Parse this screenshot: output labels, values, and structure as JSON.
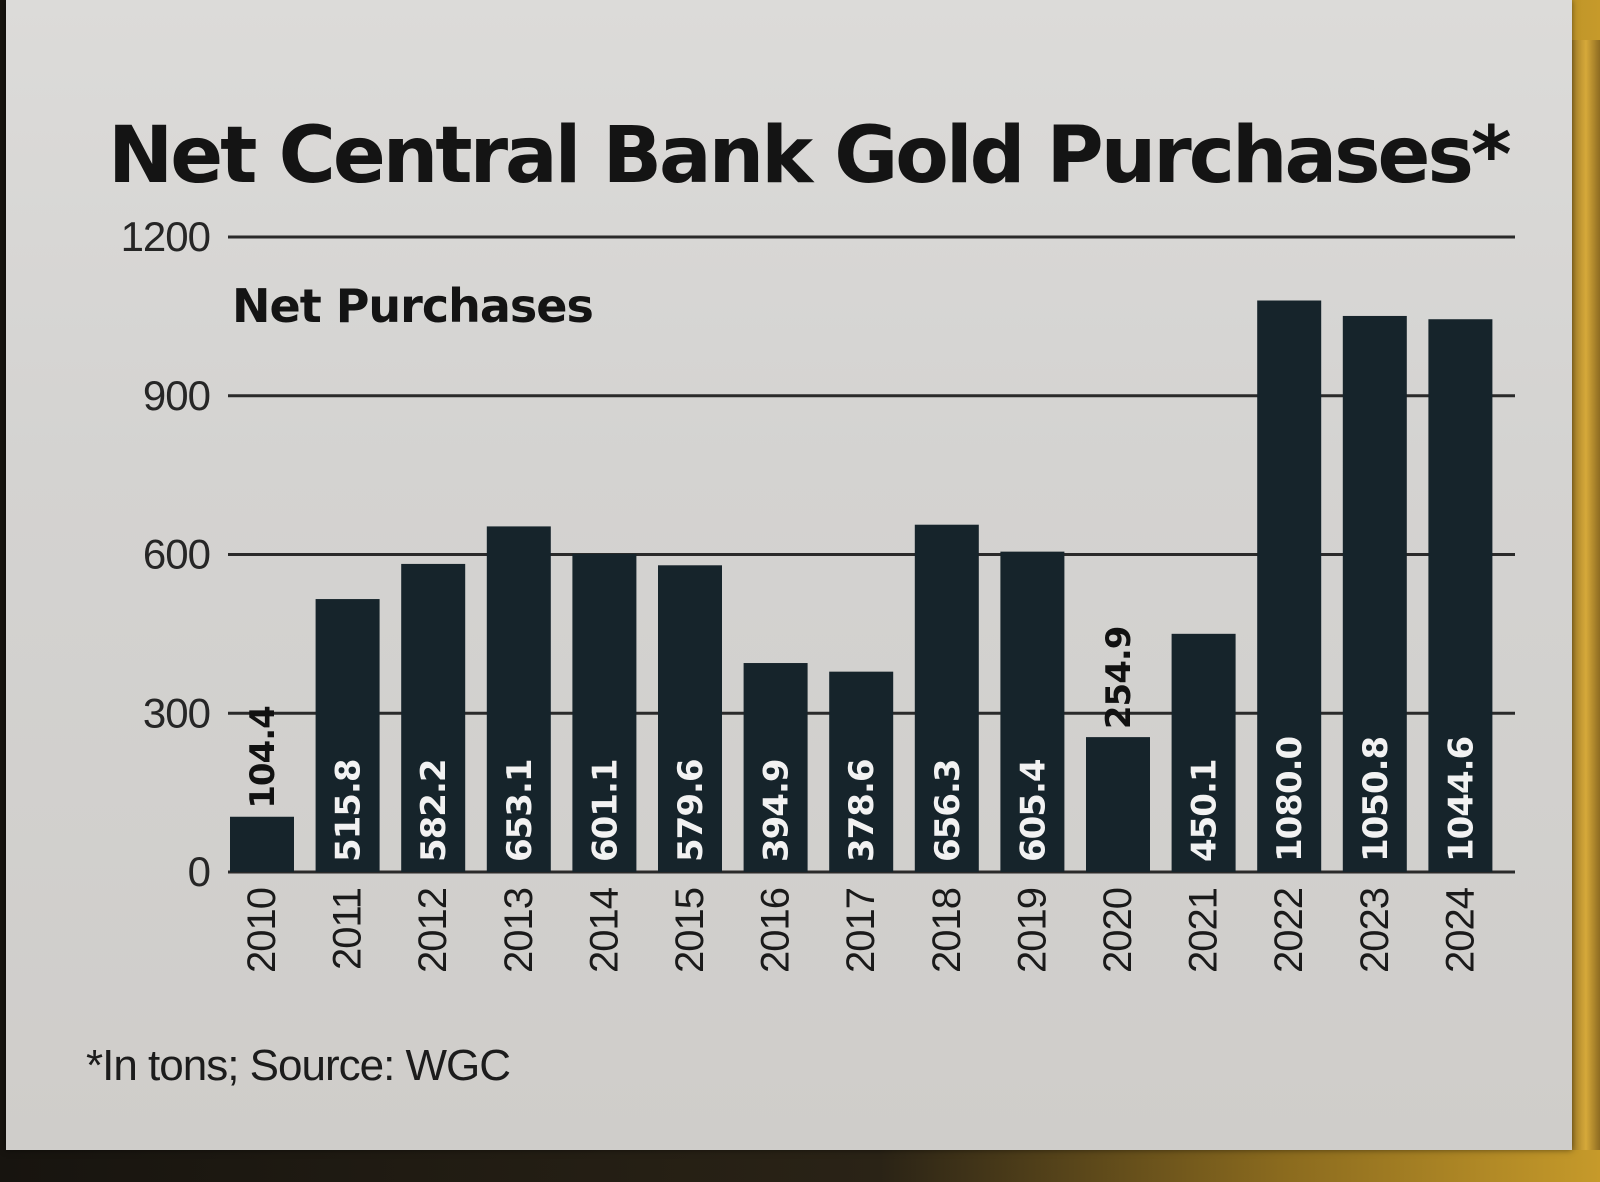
{
  "chart_data": {
    "type": "bar",
    "title": "Net Central Bank Gold Purchases*",
    "subtitle": "Net Purchases",
    "xlabel": "",
    "ylabel": "",
    "categories": [
      "2010",
      "2011",
      "2012",
      "2013",
      "2014",
      "2015",
      "2016",
      "2017",
      "2018",
      "2019",
      "2020",
      "2021",
      "2022",
      "2023",
      "2024"
    ],
    "values": [
      104.4,
      515.8,
      582.2,
      653.1,
      601.1,
      579.6,
      394.9,
      378.6,
      656.3,
      605.4,
      254.9,
      450.1,
      1080.0,
      1050.8,
      1044.6
    ],
    "data_labels": [
      "104.4",
      "515.8",
      "582.2",
      "653.1",
      "601.1",
      "579.6",
      "394.9",
      "378.6",
      "656.3",
      "605.4",
      "254.9",
      "450.1",
      "1080.0",
      "1050.8",
      "1044.6"
    ],
    "yticks": [
      "0",
      "300",
      "600",
      "900",
      "1200"
    ],
    "ylim": [
      0,
      1200
    ],
    "grid": true,
    "footnote": "*In tons; Source: WGC",
    "colors": {
      "bar": "#16242b",
      "label_inside": "#f2f2f2",
      "label_outside": "#111111",
      "grid": "#2a2a2a"
    }
  }
}
